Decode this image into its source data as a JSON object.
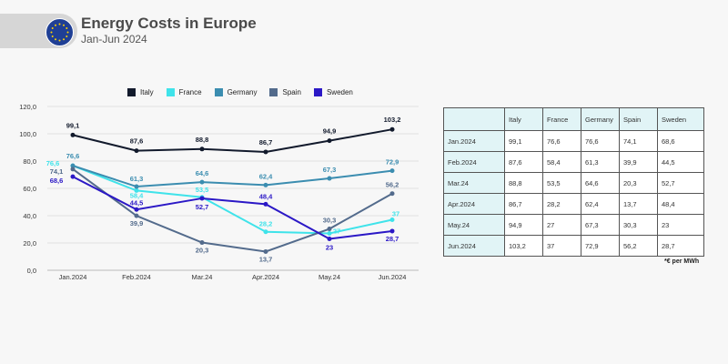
{
  "header": {
    "title": "Energy Costs in Europe",
    "subtitle": "Jan-Jun 2024"
  },
  "colors": {
    "Italy": "#121a2c",
    "France": "#3fe3ea",
    "Germany": "#3b8db0",
    "Spain": "#536b8c",
    "Sweden": "#2b18c6"
  },
  "chart_data": {
    "type": "line",
    "categories": [
      "Jan.2024",
      "Feb.2024",
      "Mar.24",
      "Apr.2024",
      "May.24",
      "Jun.2024"
    ],
    "series": [
      {
        "name": "Italy",
        "values": [
          99.1,
          87.6,
          88.8,
          86.7,
          94.9,
          103.2
        ],
        "labels": [
          "99,1",
          "87,6",
          "88,8",
          "86,7",
          "94,9",
          "103,2"
        ]
      },
      {
        "name": "France",
        "values": [
          76.6,
          58.4,
          53.5,
          28.2,
          27,
          37
        ],
        "labels": [
          "76,6",
          "58,4",
          "53,5",
          "28,2",
          "27",
          "37"
        ]
      },
      {
        "name": "Germany",
        "values": [
          76.6,
          61.3,
          64.6,
          62.4,
          67.3,
          72.9
        ],
        "labels": [
          "76,6",
          "61,3",
          "64,6",
          "62,4",
          "67,3",
          "72,9"
        ]
      },
      {
        "name": "Spain",
        "values": [
          74.1,
          39.9,
          20.3,
          13.7,
          30.3,
          56.2
        ],
        "labels": [
          "74,1",
          "39,9",
          "20,3",
          "13,7",
          "30,3",
          "56,2"
        ]
      },
      {
        "name": "Sweden",
        "values": [
          68.6,
          44.5,
          52.7,
          48.4,
          23,
          28.7
        ],
        "labels": [
          "68,6",
          "44,5",
          "52,7",
          "48,4",
          "23",
          "28,7"
        ]
      }
    ],
    "yticks": [
      "0,0",
      "20,0",
      "40,0",
      "60,0",
      "80,0",
      "100,0",
      "120,0"
    ],
    "ylim": [
      0,
      120
    ],
    "grid": true,
    "legend": "top"
  },
  "table": {
    "header": [
      "",
      "Italy",
      "France",
      "Germany",
      "Spain",
      "Sweden"
    ],
    "rows": [
      [
        "Jan.2024",
        "99,1",
        "76,6",
        "76,6",
        "74,1",
        "68,6"
      ],
      [
        "Feb.2024",
        "87,6",
        "58,4",
        "61,3",
        "39,9",
        "44,5"
      ],
      [
        "Mar.24",
        "88,8",
        "53,5",
        "64,6",
        "20,3",
        "52,7"
      ],
      [
        "Apr.2024",
        "86,7",
        "28,2",
        "62,4",
        "13,7",
        "48,4"
      ],
      [
        "May.24",
        "94,9",
        "27",
        "67,3",
        "30,3",
        "23"
      ],
      [
        "Jun.2024",
        "103,2",
        "37",
        "72,9",
        "56,2",
        "28,7"
      ]
    ],
    "note": "*€ per MWh"
  }
}
